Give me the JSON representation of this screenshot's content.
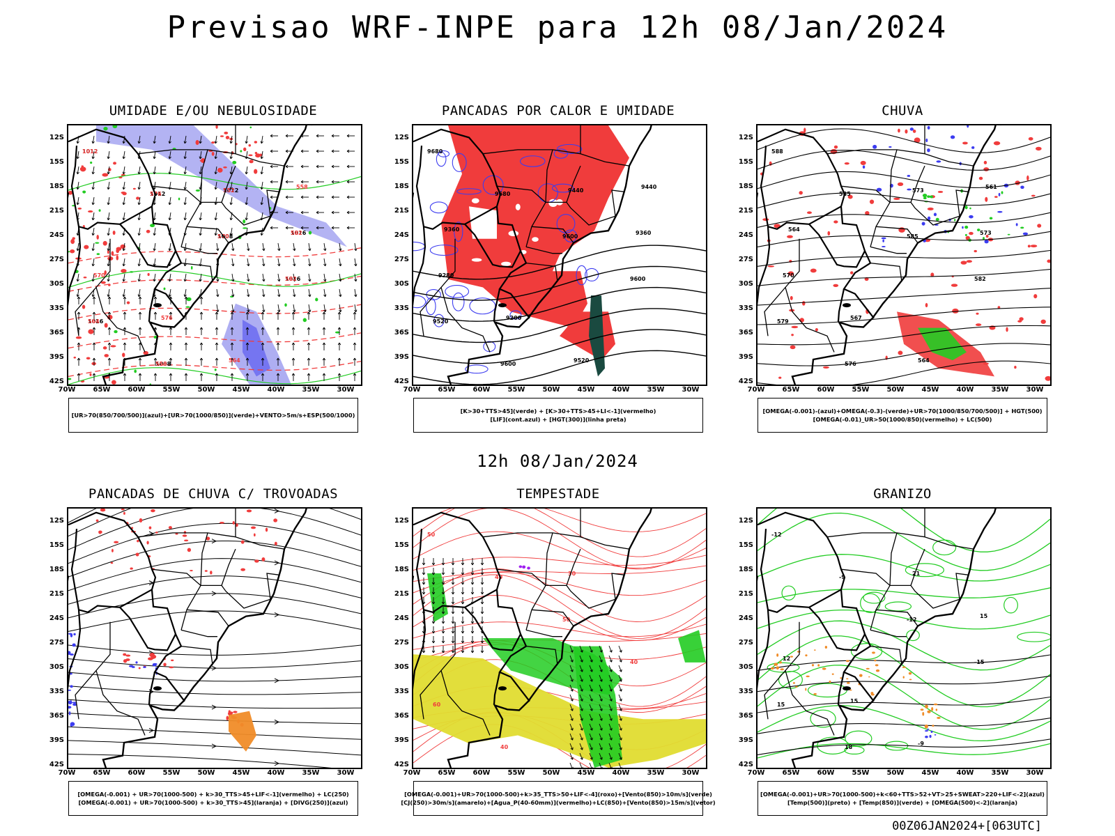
{
  "header": {
    "title": "Previsao WRF-INPE  para 12h 08/Jan/2024",
    "subtitle": "12h 08/Jan/2024",
    "stamp": "00Z06JAN2024+[063UTC]"
  },
  "axes": {
    "lat_labels": [
      "12S",
      "15S",
      "18S",
      "21S",
      "24S",
      "27S",
      "30S",
      "33S",
      "36S",
      "39S",
      "42S"
    ],
    "lon_labels": [
      "70W",
      "65W",
      "60W",
      "55W",
      "50W",
      "45W",
      "40W",
      "35W",
      "30W"
    ]
  },
  "colors": {
    "red": "#f03c3c",
    "blue": "#3c3cf0",
    "green": "#22cc22",
    "lightblue": "#a0a0f0",
    "yellow": "#e0dc30",
    "orange": "#f08c28",
    "darkteal": "#1a4a40",
    "purple": "#a020f0"
  },
  "panels": [
    {
      "title": "UMIDADE E/OU NEBULOSIDADE",
      "legend": [
        "[UR>70(850/700/500)](azul)+[UR>70(1000/850)](verde)+VENTO>5m/s+ESP(500/1000)"
      ],
      "contour_labels": [
        "1012",
        "1012",
        "1008",
        "1016",
        "1016",
        "1008",
        "1012",
        "1016",
        "1012",
        "576",
        "570",
        "582",
        "564",
        "558",
        "552",
        "582",
        "570",
        "576",
        "564",
        "558"
      ]
    },
    {
      "title": "PANCADAS POR CALOR E UMIDADE",
      "legend": [
        "[K>30+TTS>45](verde)  +  [K>30+TTS>45+LI<-1](vermelho)",
        "[LIF](cont.azul)  +  [HGT(300)](linha preta)"
      ],
      "contour_labels": [
        "9680",
        "9680",
        "9600",
        "9600",
        "9520",
        "9600",
        "9440",
        "9360",
        "9280",
        "9200",
        "9520",
        "9440",
        "9360"
      ]
    },
    {
      "title": "CHUVA",
      "legend": [
        "[OMEGA(-0.001)-(azul)+OMEGA(-0.3)-(verde)+UR>70(1000/850/700/500)]  +  HGT(500)",
        "[OMEGA(-0.01)_UR>50(1000/850)(vermelho) + LC(500)"
      ],
      "contour_labels": [
        "588",
        "585",
        "585",
        "582",
        "579",
        "576",
        "573",
        "573",
        "570",
        "567",
        "564",
        "561",
        "564"
      ]
    },
    {
      "title": "PANCADAS DE CHUVA C/ TROVOADAS",
      "legend": [
        "[OMEGA(-0.001) + UR>70(1000-500) + k>30_TTS>45+LIF<-1](vermelho) + LC(250)",
        "[OMEGA(-0.001) + UR>70(1000-500) + k>30_TTS>45](laranja) + [DIVG(250)](azul)"
      ],
      "contour_labels": []
    },
    {
      "title": "TEMPESTADE",
      "legend": [
        "[OMEGA(-0.001)+UR>70(1000-500)+k>35_TTS>50+LIF<-4](roxo)+[Vento(850)>10m/s](verde)",
        "[CJ(250)>30m/s](amarelo)+[Agua_P(40-60mm)](vermelho)+LC(850)+[Vento(850)>15m/s](vetor)"
      ],
      "contour_labels": [
        "50",
        "40",
        "50",
        "40",
        "60",
        "40",
        "30"
      ]
    },
    {
      "title": "GRANIZO",
      "legend": [
        "[OMEGA(-0.001)+UR>70(1000-500)+k<60+TTS>52+VT>25+SWEAT>220+LIF<-2](azul)",
        "[Temp(500)](preto) + [Temp(850)](verde) + [OMEGA(500)<-2](laranja)"
      ],
      "contour_labels": [
        "-12",
        "-9",
        "-12",
        "-15",
        "15",
        "18",
        "21",
        "15",
        "12",
        "15",
        "-9"
      ]
    }
  ]
}
